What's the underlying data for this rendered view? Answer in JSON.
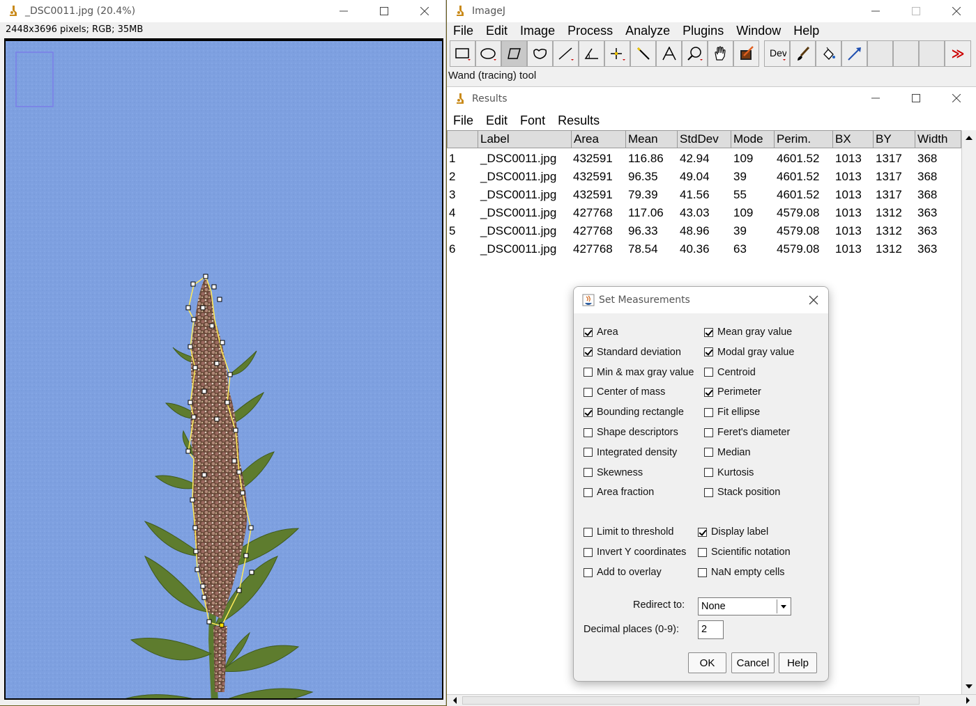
{
  "image_window": {
    "title": "_DSC0011.jpg (20.4%)",
    "info": "2448x3696 pixels; RGB; 35MB"
  },
  "imagej_window": {
    "title": "ImageJ",
    "menu": [
      "File",
      "Edit",
      "Image",
      "Process",
      "Analyze",
      "Plugins",
      "Window",
      "Help"
    ],
    "tools": [
      "rectangle-icon",
      "oval-icon",
      "polygon-icon",
      "freehand-icon",
      "line-icon",
      "angle-icon",
      "point-icon",
      "wand-icon",
      "text-icon",
      "magnifier-icon",
      "hand-icon",
      "color-picker-icon",
      "dev-icon",
      "brush-icon",
      "flood-fill-icon",
      "arrow-icon"
    ],
    "dev_label": "Dev",
    "status": "Wand (tracing) tool",
    "more_tools": "≫"
  },
  "results_window": {
    "title": "Results",
    "menu": [
      "File",
      "Edit",
      "Font",
      "Results"
    ],
    "columns": [
      "Label",
      "Area",
      "Mean",
      "StdDev",
      "Mode",
      "Perim.",
      "BX",
      "BY",
      "Width"
    ],
    "rows": [
      {
        "n": "1",
        "cells": [
          "_DSC0011.jpg",
          "432591",
          "116.86",
          "42.94",
          "109",
          "4601.52",
          "1013",
          "1317",
          "368"
        ]
      },
      {
        "n": "2",
        "cells": [
          "_DSC0011.jpg",
          "432591",
          "96.35",
          "49.04",
          "39",
          "4601.52",
          "1013",
          "1317",
          "368"
        ]
      },
      {
        "n": "3",
        "cells": [
          "_DSC0011.jpg",
          "432591",
          "79.39",
          "41.56",
          "55",
          "4601.52",
          "1013",
          "1317",
          "368"
        ]
      },
      {
        "n": "4",
        "cells": [
          "_DSC0011.jpg",
          "427768",
          "117.06",
          "43.03",
          "109",
          "4579.08",
          "1013",
          "1312",
          "363"
        ]
      },
      {
        "n": "5",
        "cells": [
          "_DSC0011.jpg",
          "427768",
          "96.33",
          "48.96",
          "39",
          "4579.08",
          "1013",
          "1312",
          "363"
        ]
      },
      {
        "n": "6",
        "cells": [
          "_DSC0011.jpg",
          "427768",
          "78.54",
          "40.36",
          "63",
          "4579.08",
          "1013",
          "1312",
          "363"
        ]
      }
    ]
  },
  "dialog": {
    "title": "Set Measurements",
    "left": [
      {
        "label": "Area",
        "checked": true
      },
      {
        "label": "Standard deviation",
        "checked": true
      },
      {
        "label": "Min & max gray value",
        "checked": false
      },
      {
        "label": "Center of mass",
        "checked": false
      },
      {
        "label": "Bounding rectangle",
        "checked": true
      },
      {
        "label": "Shape descriptors",
        "checked": false
      },
      {
        "label": "Integrated density",
        "checked": false
      },
      {
        "label": "Skewness",
        "checked": false
      },
      {
        "label": "Area fraction",
        "checked": false
      }
    ],
    "right": [
      {
        "label": "Mean gray value",
        "checked": true
      },
      {
        "label": "Modal gray value",
        "checked": true
      },
      {
        "label": "Centroid",
        "checked": false
      },
      {
        "label": "Perimeter",
        "checked": true
      },
      {
        "label": "Fit ellipse",
        "checked": false
      },
      {
        "label": "Feret's diameter",
        "checked": false
      },
      {
        "label": "Median",
        "checked": false
      },
      {
        "label": "Kurtosis",
        "checked": false
      },
      {
        "label": "Stack position",
        "checked": false
      }
    ],
    "options_left": [
      {
        "label": "Limit to threshold",
        "checked": false
      },
      {
        "label": "Invert Y coordinates",
        "checked": false
      },
      {
        "label": "Add to overlay",
        "checked": false
      }
    ],
    "options_right": [
      {
        "label": "Display label",
        "checked": true
      },
      {
        "label": "Scientific notation",
        "checked": false
      },
      {
        "label": "NaN empty cells",
        "checked": false
      }
    ],
    "redirect_label": "Redirect to:",
    "redirect_value": "None",
    "decimal_label": "Decimal places (0-9):",
    "decimal_value": "2",
    "ok": "OK",
    "cancel": "Cancel",
    "help": "Help"
  },
  "colors": {
    "background_blue": "#7ea0e0",
    "roi_white": "#ffffff",
    "accent_red": "#cc0000"
  }
}
